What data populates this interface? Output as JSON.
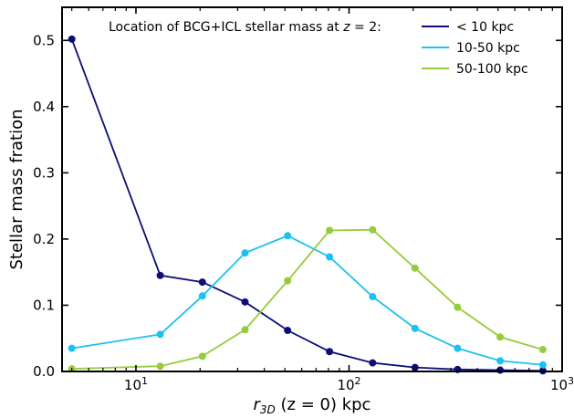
{
  "chart_data": {
    "type": "line",
    "xscale": "log",
    "xlim": [
      4.5,
      1000
    ],
    "ylim": [
      0,
      0.55
    ],
    "xlabel": {
      "main": "r",
      "sub": "3D",
      "rest": " (z = 0) kpc"
    },
    "ylabel": "Stellar mass fration",
    "xticks": [
      {
        "value": 10,
        "base": "10",
        "exp": "1"
      },
      {
        "value": 100,
        "base": "10",
        "exp": "2"
      },
      {
        "value": 1000,
        "base": "10",
        "exp": "3"
      }
    ],
    "yticks": [
      "0.0",
      "0.1",
      "0.2",
      "0.3",
      "0.4",
      "0.5"
    ],
    "legend": {
      "title_prefix": "Location of BCG+ICL stellar mass at ",
      "title_var": "z",
      "title_suffix": " = 2:",
      "placement": "top-right"
    },
    "x": [
      5,
      13,
      20.5,
      32.5,
      51.5,
      81,
      129,
      204,
      323,
      512,
      812
    ],
    "series": [
      {
        "name": "< 10 kpc",
        "color": "#0d0d7a",
        "values": [
          0.502,
          0.145,
          0.135,
          0.105,
          0.062,
          0.03,
          0.013,
          0.006,
          0.003,
          0.002,
          0.001
        ]
      },
      {
        "name": "10-50 kpc",
        "color": "#1cc2ef",
        "values": [
          0.035,
          0.056,
          0.114,
          0.179,
          0.205,
          0.173,
          0.113,
          0.065,
          0.035,
          0.016,
          0.01
        ]
      },
      {
        "name": "50-100 kpc",
        "color": "#96cc3c",
        "values": [
          0.004,
          0.008,
          0.023,
          0.063,
          0.137,
          0.213,
          0.214,
          0.156,
          0.097,
          0.052,
          0.033
        ]
      }
    ]
  }
}
